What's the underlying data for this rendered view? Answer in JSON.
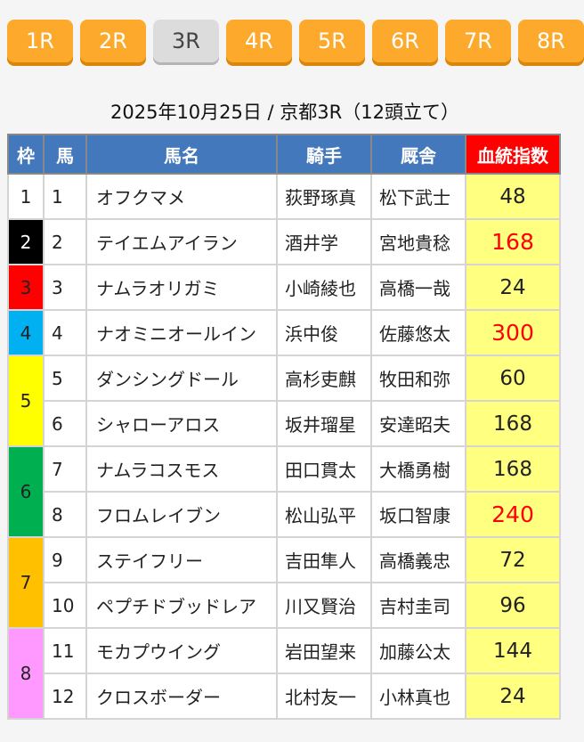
{
  "race_tabs": [
    {
      "label": "1R"
    },
    {
      "label": "2R"
    },
    {
      "label": "3R",
      "active": true
    },
    {
      "label": "4R"
    },
    {
      "label": "5R"
    },
    {
      "label": "6R"
    },
    {
      "label": "7R"
    },
    {
      "label": "8R"
    }
  ],
  "title": "2025年10月25日 / 京都3R（12頭立て）",
  "headers": {
    "frame": "枠",
    "number": "馬",
    "horse": "馬名",
    "jockey": "騎手",
    "trainer": "厩舎",
    "index": "血統指数"
  },
  "frames": [
    {
      "frame": "1",
      "color": "#ffffff",
      "text_color": "#222222",
      "rows": 1
    },
    {
      "frame": "2",
      "color": "#000000",
      "text_color": "#ffffff",
      "rows": 1
    },
    {
      "frame": "3",
      "color": "#ff0000",
      "text_color": "#222222",
      "rows": 1
    },
    {
      "frame": "4",
      "color": "#00b0f0",
      "text_color": "#222222",
      "rows": 1
    },
    {
      "frame": "5",
      "color": "#ffff00",
      "text_color": "#222222",
      "rows": 2
    },
    {
      "frame": "6",
      "color": "#00b050",
      "text_color": "#222222",
      "rows": 2
    },
    {
      "frame": "7",
      "color": "#ffc000",
      "text_color": "#222222",
      "rows": 2
    },
    {
      "frame": "8",
      "color": "#ff99ff",
      "text_color": "#222222",
      "rows": 2
    }
  ],
  "horses": [
    {
      "number": "1",
      "name": "オフクマメ",
      "jockey": "荻野琢真",
      "trainer": "松下武士",
      "index": "48",
      "highlight": false
    },
    {
      "number": "2",
      "name": "テイエムアイラン",
      "jockey": "酒井学",
      "trainer": "宮地貴稔",
      "index": "168",
      "highlight": true
    },
    {
      "number": "3",
      "name": "ナムラオリガミ",
      "jockey": "小崎綾也",
      "trainer": "高橋一哉",
      "index": "24",
      "highlight": false
    },
    {
      "number": "4",
      "name": "ナオミニオールイン",
      "jockey": "浜中俊",
      "trainer": "佐藤悠太",
      "index": "300",
      "highlight": true
    },
    {
      "number": "5",
      "name": "ダンシングドール",
      "jockey": "高杉吏麒",
      "trainer": "牧田和弥",
      "index": "60",
      "highlight": false
    },
    {
      "number": "6",
      "name": "シャローアロス",
      "jockey": "坂井瑠星",
      "trainer": "安達昭夫",
      "index": "168",
      "highlight": false
    },
    {
      "number": "7",
      "name": "ナムラコスモス",
      "jockey": "田口貫太",
      "trainer": "大橋勇樹",
      "index": "168",
      "highlight": false
    },
    {
      "number": "8",
      "name": "フロムレイブン",
      "jockey": "松山弘平",
      "trainer": "坂口智康",
      "index": "240",
      "highlight": true
    },
    {
      "number": "9",
      "name": "ステイフリー",
      "jockey": "吉田隼人",
      "trainer": "高橋義忠",
      "index": "72",
      "highlight": false
    },
    {
      "number": "10",
      "name": "ペプチドブッドレア",
      "jockey": "川又賢治",
      "trainer": "吉村圭司",
      "index": "96",
      "highlight": false
    },
    {
      "number": "11",
      "name": "モカプウイング",
      "jockey": "岩田望来",
      "trainer": "加藤公太",
      "index": "144",
      "highlight": false
    },
    {
      "number": "12",
      "name": "クロスボーダー",
      "jockey": "北村友一",
      "trainer": "小林真也",
      "index": "24",
      "highlight": false
    }
  ]
}
